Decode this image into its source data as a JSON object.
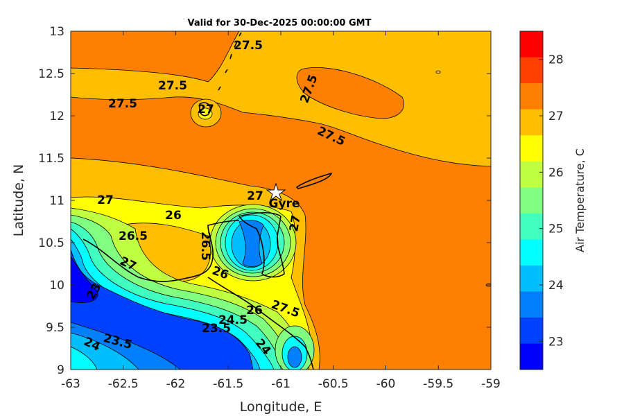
{
  "chart_data": {
    "type": "contourf",
    "title": "Valid for 30-Dec-2025 00:00:00 GMT",
    "xlabel": "Longitude, E",
    "ylabel": "Latitude, N",
    "xlim": [
      -63,
      -59
    ],
    "ylim": [
      9,
      13
    ],
    "xticks": [
      "-63",
      "-62.5",
      "-62",
      "-61.5",
      "-61",
      "-60.5",
      "-60",
      "-59.5",
      "-59"
    ],
    "yticks": [
      "13",
      "12.5",
      "12",
      "11.5",
      "11",
      "10.5",
      "10",
      "9.5",
      "9"
    ],
    "colorbar": {
      "label": "Air Temperature, C",
      "range": [
        22.5,
        28.5
      ],
      "ticks": [
        "28",
        "27",
        "26",
        "25",
        "24",
        "23"
      ],
      "colors": [
        "#ff0000",
        "#ff4000",
        "#ff8000",
        "#ffbf00",
        "#ffff00",
        "#bfff40",
        "#80ff80",
        "#40ffbf",
        "#00ffff",
        "#00bfff",
        "#0080ff",
        "#0040ff",
        "#0000ff"
      ]
    },
    "contour_labels": [
      "27.5",
      "27.5",
      "27.5",
      "27.5",
      "27",
      "27.5",
      "27",
      "27",
      "26",
      "26.5",
      "26.5",
      "27",
      "27",
      "26",
      "23",
      "26",
      "27.5",
      "24.5",
      "23.5",
      "23.5",
      "24",
      "24"
    ],
    "marker": {
      "name": "Gyre",
      "lon": -61.02,
      "lat": 11.1,
      "symbol": "star"
    }
  }
}
